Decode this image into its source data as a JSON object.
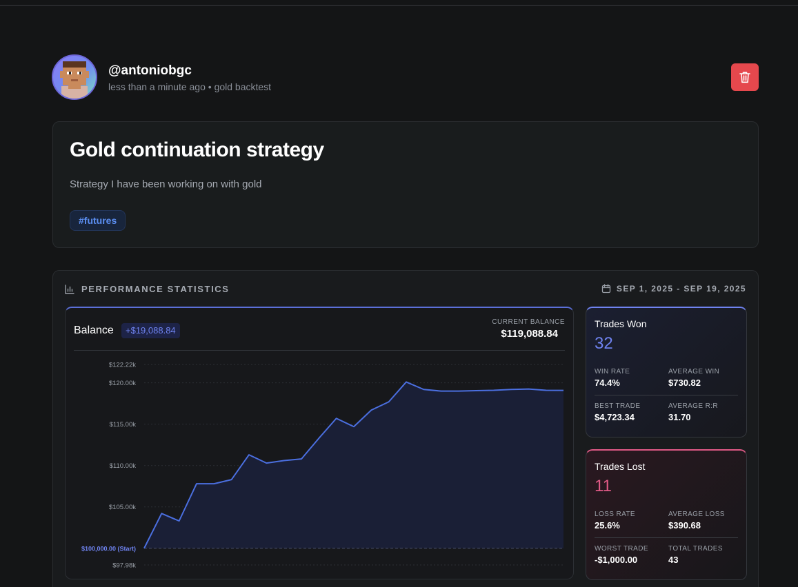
{
  "author": {
    "username": "@antoniobgc",
    "time": "less than a minute ago",
    "separator": "•",
    "category": "gold backtest"
  },
  "post": {
    "title": "Gold continuation strategy",
    "description": "Strategy I have been working on with gold",
    "tag": "#futures"
  },
  "stats": {
    "title": "PERFORMANCE STATISTICS",
    "date_range": "SEP 1, 2025 - SEP 19, 2025"
  },
  "balance": {
    "label": "Balance",
    "change": "+$19,088.84",
    "current_label": "CURRENT BALANCE",
    "current_value": "$119,088.84"
  },
  "chart_data": {
    "type": "area",
    "title": "Balance",
    "y_ticks": [
      "$122.22k",
      "$120.00k",
      "$115.00k",
      "$110.00k",
      "$105.00k",
      "$97.98k"
    ],
    "y_tick_values": [
      122220,
      120000,
      115000,
      110000,
      105000,
      97980
    ],
    "start_label": "$100,000.00 (Start)",
    "start_value": 100000,
    "ylim": [
      97980,
      122220
    ],
    "values": [
      100000,
      104200,
      103300,
      107800,
      107800,
      108300,
      111300,
      110300,
      110600,
      110800,
      113300,
      115700,
      114700,
      116700,
      117700,
      120100,
      119200,
      119000,
      119000,
      119050,
      119100,
      119200,
      119250,
      119100,
      119090
    ],
    "colors": {
      "line": "#4b6fe0",
      "fill": "#1a1f36",
      "start": "#6f83f0"
    }
  },
  "won": {
    "title": "Trades Won",
    "count": "32",
    "win_rate_label": "WIN RATE",
    "win_rate": "74.4%",
    "avg_win_label": "AVERAGE WIN",
    "avg_win": "$730.82",
    "best_label": "BEST TRADE",
    "best": "$4,723.34",
    "rr_label": "AVERAGE R:R",
    "rr": "31.70"
  },
  "lost": {
    "title": "Trades Lost",
    "count": "11",
    "loss_rate_label": "LOSS RATE",
    "loss_rate": "25.6%",
    "avg_loss_label": "AVERAGE LOSS",
    "avg_loss": "$390.68",
    "worst_label": "WORST TRADE",
    "worst": "-$1,000.00",
    "total_label": "TOTAL TRADES",
    "total": "43"
  }
}
